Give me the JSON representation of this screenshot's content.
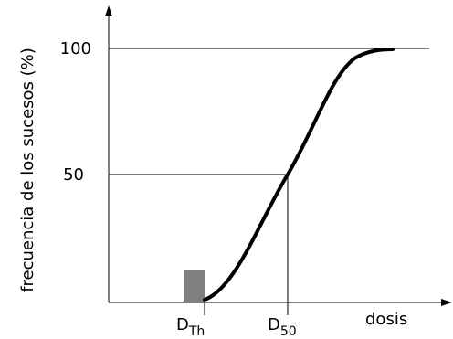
{
  "y_axis_label": "frecuencia de los sucesos (%)",
  "y_ticks": [
    "100",
    "50"
  ],
  "x_labels": {
    "threshold": {
      "main": "D",
      "sub": "Th"
    },
    "median": {
      "main": "D",
      "sub": "50"
    },
    "axis": "dosis"
  }
}
